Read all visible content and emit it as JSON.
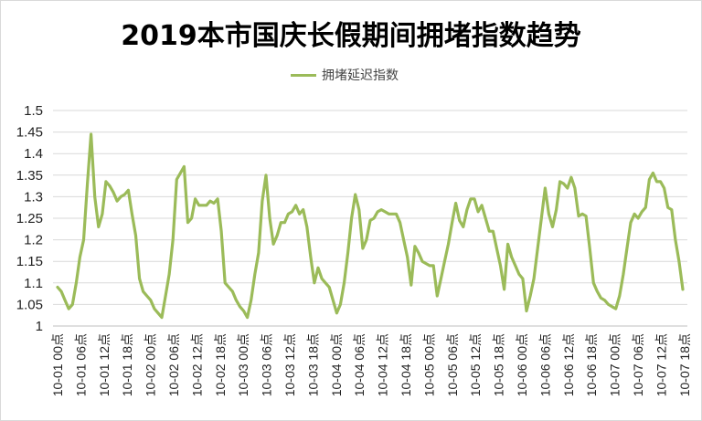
{
  "chart_data": {
    "type": "line",
    "title": "2019本市国庆长假期间拥堵指数趋势",
    "xlabel": "",
    "ylabel": "",
    "ylim": [
      1,
      1.5
    ],
    "yticks": [
      "1",
      "1.05",
      "1.1",
      "1.15",
      "1.2",
      "1.25",
      "1.3",
      "1.35",
      "1.4",
      "1.45",
      "1.5"
    ],
    "grid": true,
    "legend_position": "top-center",
    "colors": {
      "series": "#9bbb59",
      "grid": "#d9d9d9"
    },
    "x_tick_labels": [
      "10-01 00点",
      "10-01 06点",
      "10-01 12点",
      "10-01 18点",
      "10-02 00点",
      "10-02 06点",
      "10-02 12点",
      "10-02 18点",
      "10-03 00点",
      "10-03 06点",
      "10-03 12点",
      "10-03 18点",
      "10-04 00点",
      "10-04 06点",
      "10-04 12点",
      "10-04 18点",
      "10-05 00点",
      "10-05 06点",
      "10-05 12点",
      "10-05 18点",
      "10-06 00点",
      "10-06 06点",
      "10-06 12点",
      "10-06 18点",
      "10-07 00点",
      "10-07 06点",
      "10-07 12点",
      "10-07 18点"
    ],
    "series": [
      {
        "name": "拥堵延迟指数",
        "values": [
          1.09,
          1.08,
          1.06,
          1.04,
          1.05,
          1.1,
          1.16,
          1.2,
          1.33,
          1.445,
          1.3,
          1.23,
          1.26,
          1.335,
          1.325,
          1.31,
          1.29,
          1.3,
          1.305,
          1.315,
          1.26,
          1.21,
          1.11,
          1.08,
          1.07,
          1.06,
          1.04,
          1.03,
          1.02,
          1.07,
          1.12,
          1.2,
          1.34,
          1.355,
          1.37,
          1.24,
          1.25,
          1.295,
          1.28,
          1.28,
          1.28,
          1.29,
          1.285,
          1.295,
          1.22,
          1.1,
          1.09,
          1.08,
          1.06,
          1.045,
          1.035,
          1.02,
          1.06,
          1.12,
          1.17,
          1.29,
          1.35,
          1.25,
          1.19,
          1.21,
          1.24,
          1.24,
          1.26,
          1.265,
          1.28,
          1.26,
          1.27,
          1.23,
          1.16,
          1.1,
          1.135,
          1.11,
          1.1,
          1.09,
          1.06,
          1.03,
          1.05,
          1.1,
          1.17,
          1.25,
          1.305,
          1.27,
          1.18,
          1.2,
          1.245,
          1.25,
          1.265,
          1.27,
          1.265,
          1.26,
          1.26,
          1.26,
          1.24,
          1.2,
          1.16,
          1.095,
          1.185,
          1.17,
          1.15,
          1.145,
          1.14,
          1.14,
          1.07,
          1.11,
          1.15,
          1.19,
          1.24,
          1.285,
          1.245,
          1.23,
          1.27,
          1.295,
          1.295,
          1.265,
          1.28,
          1.25,
          1.22,
          1.22,
          1.18,
          1.14,
          1.085,
          1.19,
          1.16,
          1.14,
          1.12,
          1.11,
          1.035,
          1.07,
          1.11,
          1.18,
          1.25,
          1.32,
          1.26,
          1.23,
          1.27,
          1.335,
          1.33,
          1.32,
          1.345,
          1.32,
          1.255,
          1.26,
          1.255,
          1.18,
          1.1,
          1.08,
          1.065,
          1.06,
          1.05,
          1.045,
          1.04,
          1.07,
          1.12,
          1.18,
          1.24,
          1.26,
          1.25,
          1.265,
          1.275,
          1.34,
          1.355,
          1.335,
          1.335,
          1.32,
          1.275,
          1.27,
          1.2,
          1.15,
          1.085
        ]
      }
    ]
  }
}
